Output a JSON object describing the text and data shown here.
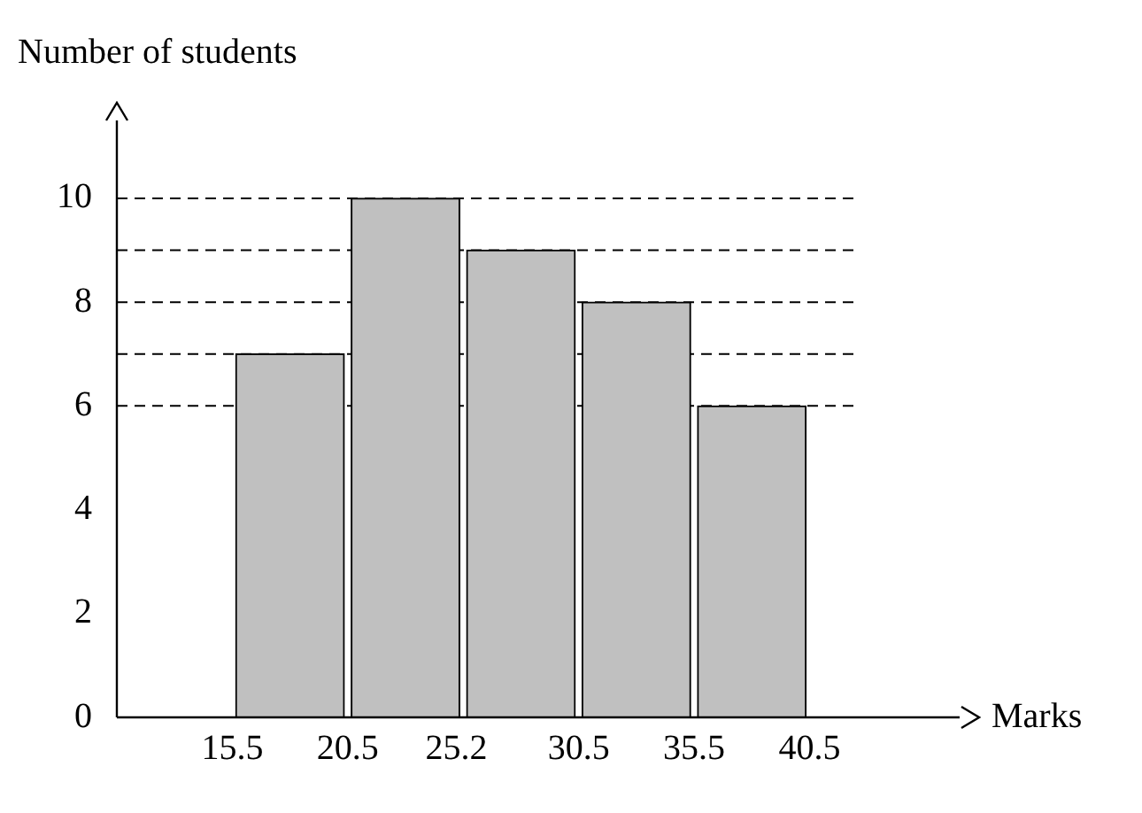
{
  "chart_data": {
    "type": "histogram",
    "xlabel": "Marks",
    "ylabel": "Number of students",
    "bins": [
      15.5,
      20.5,
      25.5,
      30.5,
      35.5,
      40.5
    ],
    "values": [
      7,
      10,
      9,
      8,
      6
    ],
    "color": "#c0c0c0",
    "xlim": [
      10.5,
      47
    ],
    "xticks": [
      15.5,
      20.5,
      25.2,
      30.5,
      35.5,
      40.5
    ],
    "ylim": [
      0,
      11.5
    ],
    "yticks": [
      0,
      2,
      4,
      6,
      8,
      10
    ],
    "grid": false,
    "legend": false,
    "ref_lines": [
      {
        "axis": "y",
        "value": 10,
        "line_style": "dashed"
      },
      {
        "axis": "y",
        "value": 9,
        "line_style": "dashed"
      },
      {
        "axis": "y",
        "value": 8,
        "line_style": "dashed"
      },
      {
        "axis": "y",
        "value": 7,
        "line_style": "dashed"
      },
      {
        "axis": "y",
        "value": 6,
        "line_style": "dashed"
      }
    ]
  }
}
